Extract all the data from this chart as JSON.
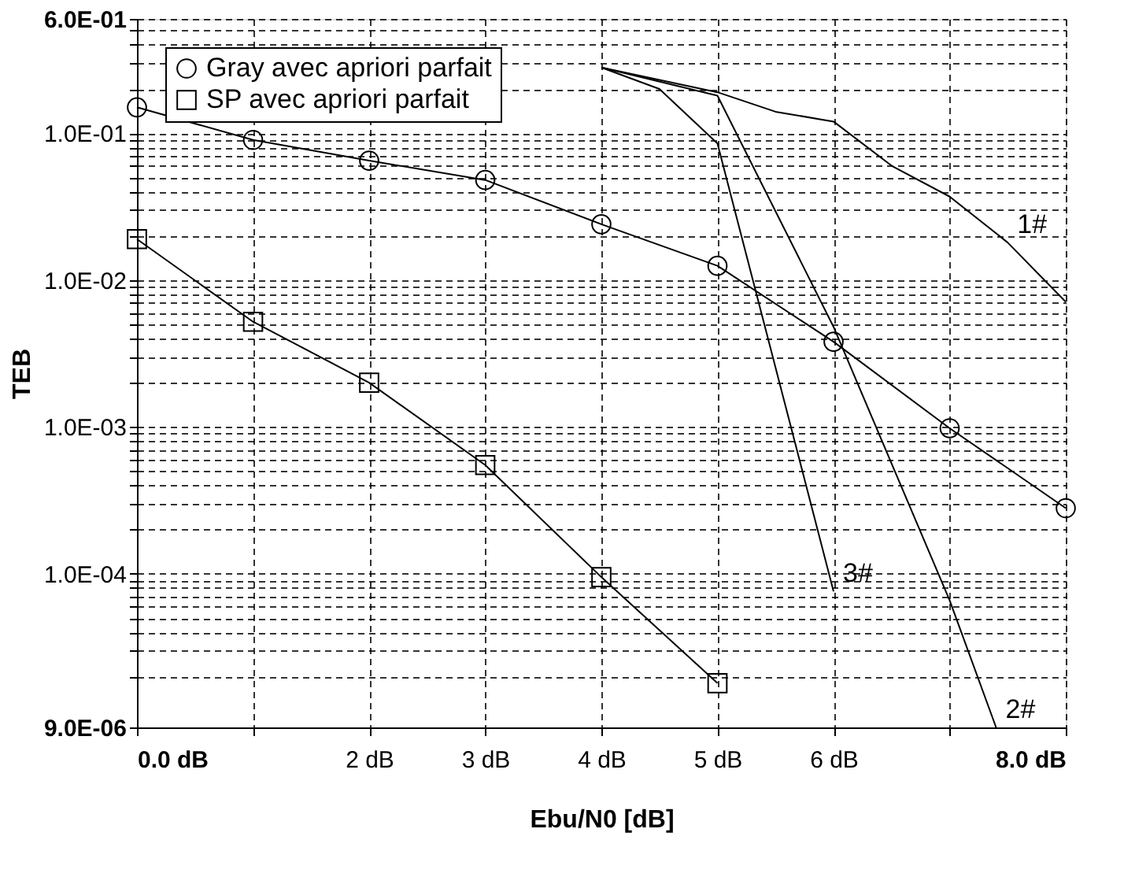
{
  "chart_data": {
    "type": "line",
    "xlabel": "Ebu/N0 [dB]",
    "ylabel": "TEB",
    "log": "y",
    "grid": true,
    "legend": "top left",
    "line_style": "solid",
    "xlim": [
      0,
      8
    ],
    "ylim": [
      9e-06,
      0.6
    ],
    "xticks": [
      {
        "value": 0,
        "label": "0.0 dB"
      },
      {
        "value": 1,
        "label": null
      },
      {
        "value": 2,
        "label": "2 dB"
      },
      {
        "value": 3,
        "label": "3 dB"
      },
      {
        "value": 4,
        "label": "4 dB"
      },
      {
        "value": 5,
        "label": "5 dB"
      },
      {
        "value": 6,
        "label": "6 dB"
      },
      {
        "value": 7,
        "label": null
      },
      {
        "value": 8,
        "label": "8.0 dB"
      }
    ],
    "yticks": [
      {
        "value": 9e-06,
        "label": "9.0E-06"
      },
      {
        "value": 2e-05,
        "label": null
      },
      {
        "value": 3e-05,
        "label": null
      },
      {
        "value": 4e-05,
        "label": null
      },
      {
        "value": 5e-05,
        "label": null
      },
      {
        "value": 6e-05,
        "label": null
      },
      {
        "value": 7e-05,
        "label": null
      },
      {
        "value": 8e-05,
        "label": null
      },
      {
        "value": 9e-05,
        "label": null
      },
      {
        "value": 0.0001,
        "label": "1.0E-04"
      },
      {
        "value": 0.0002,
        "label": null
      },
      {
        "value": 0.0003,
        "label": null
      },
      {
        "value": 0.0004,
        "label": null
      },
      {
        "value": 0.0005,
        "label": null
      },
      {
        "value": 0.0006,
        "label": null
      },
      {
        "value": 0.0007,
        "label": null
      },
      {
        "value": 0.0008,
        "label": null
      },
      {
        "value": 0.0009,
        "label": null
      },
      {
        "value": 0.001,
        "label": "1.0E-03"
      },
      {
        "value": 0.002,
        "label": null
      },
      {
        "value": 0.003,
        "label": null
      },
      {
        "value": 0.004,
        "label": null
      },
      {
        "value": 0.005,
        "label": null
      },
      {
        "value": 0.006,
        "label": null
      },
      {
        "value": 0.007,
        "label": null
      },
      {
        "value": 0.008,
        "label": null
      },
      {
        "value": 0.009,
        "label": null
      },
      {
        "value": 0.01,
        "label": "1.0E-02"
      },
      {
        "value": 0.02,
        "label": null
      },
      {
        "value": 0.03,
        "label": null
      },
      {
        "value": 0.04,
        "label": null
      },
      {
        "value": 0.05,
        "label": null
      },
      {
        "value": 0.06,
        "label": null
      },
      {
        "value": 0.07,
        "label": null
      },
      {
        "value": 0.08,
        "label": null
      },
      {
        "value": 0.09,
        "label": null
      },
      {
        "value": 0.1,
        "label": "1.0E-01"
      },
      {
        "value": 0.2,
        "label": null
      },
      {
        "value": 0.3,
        "label": null
      },
      {
        "value": 0.4,
        "label": null
      },
      {
        "value": 0.5,
        "label": null
      },
      {
        "value": 0.6,
        "label": "6.0E-01"
      }
    ],
    "series": [
      {
        "name": "Gray avec apriori parfait",
        "color": "#000000",
        "marker": "circle",
        "x": [
          0,
          1,
          2,
          3,
          4,
          5,
          6,
          7,
          8
        ],
        "values": [
          0.15,
          0.09,
          0.065,
          0.048,
          0.024,
          0.0125,
          0.0038,
          0.00098,
          0.00028
        ]
      },
      {
        "name": "SP avec apriori parfait",
        "color": "#000000",
        "marker": "square",
        "x": [
          0,
          1,
          2,
          3,
          4,
          5
        ],
        "values": [
          0.019,
          0.0052,
          0.002,
          0.00055,
          9.5e-05,
          1.8e-05
        ]
      },
      {
        "color": "#000000",
        "marker": "none",
        "x": [
          4,
          5,
          5.5,
          6,
          6.5,
          7,
          7.5,
          8
        ],
        "values": [
          0.28,
          0.19,
          0.14,
          0.12,
          0.06,
          0.037,
          0.018,
          0.0071
        ]
      },
      {
        "color": "#000000",
        "marker": "none",
        "x": [
          4,
          5,
          6,
          7,
          7.4
        ],
        "values": [
          0.28,
          0.18,
          0.0048,
          6.6e-05,
          9e-06
        ]
      },
      {
        "color": "#000000",
        "marker": "none",
        "x": [
          4,
          4.5,
          5,
          6
        ],
        "values": [
          0.28,
          0.2,
          0.085,
          7.6e-05
        ]
      }
    ],
    "annotations": [
      {
        "text": "1#",
        "x": 7.5,
        "y": 0.018
      },
      {
        "text": "2#",
        "x": 7.4,
        "y": 9e-06
      },
      {
        "text": "3#",
        "x": 6,
        "y": 7.6e-05
      }
    ]
  }
}
